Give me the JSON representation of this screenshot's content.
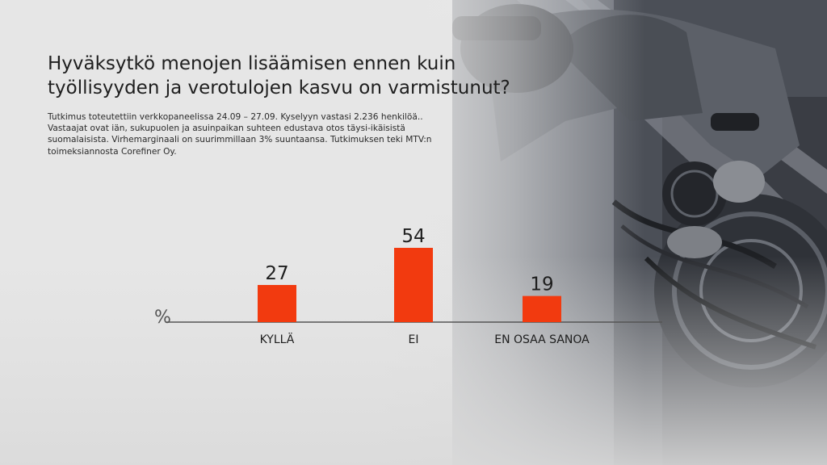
{
  "title": "Hyväksytkö menojen lisäämisen ennen kuin työllisyyden ja verotulojen kasvu on varmistunut?",
  "subtitle": "Tutkimus toteutettiin verkkopaneelissa 24.09 – 27.09. Kyselyyn vastasi 2.236 henkilöä.. Vastaajat ovat iän, sukupuolen ja asuinpaikan suhteen edustava otos täysi-ikäisistä suomalaisista. Virhemarginaali on suurimmillaan 3% suuntaansa. Tutkimuksen teki MTV:n toimeksiannosta Corefiner Oy.",
  "colors": {
    "bar": "#f23a0f",
    "axis": "#555555",
    "text": "#1e1e1e"
  },
  "chart_data": {
    "type": "bar",
    "unit_label": "%",
    "categories": [
      "KYLLÄ",
      "EI",
      "EN OSAA SANOA"
    ],
    "values": [
      27,
      54,
      19
    ],
    "ylim": [
      0,
      60
    ],
    "grid": false
  }
}
